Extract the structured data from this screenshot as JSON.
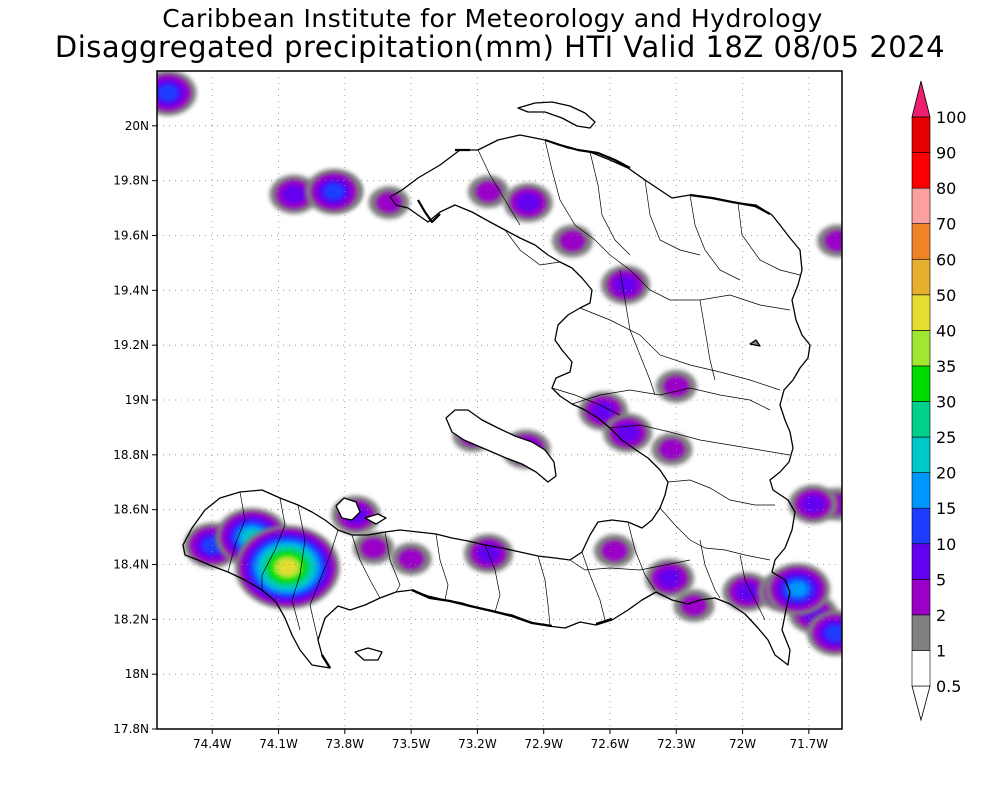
{
  "title": {
    "line1": "Caribbean Institute for Meteorology and Hydrology",
    "line2": "Disaggregated precipitation(mm) HTI Valid 18Z 08/05 2024"
  },
  "map": {
    "lon_range": [
      -74.65,
      -71.55
    ],
    "lat_range": [
      17.8,
      20.2
    ],
    "y_ticks": [
      {
        "value": 20.0,
        "label": "20N"
      },
      {
        "value": 19.8,
        "label": "19.8N"
      },
      {
        "value": 19.6,
        "label": "19.6N"
      },
      {
        "value": 19.4,
        "label": "19.4N"
      },
      {
        "value": 19.2,
        "label": "19.2N"
      },
      {
        "value": 19.0,
        "label": "19N"
      },
      {
        "value": 18.8,
        "label": "18.8N"
      },
      {
        "value": 18.6,
        "label": "18.6N"
      },
      {
        "value": 18.4,
        "label": "18.4N"
      },
      {
        "value": 18.2,
        "label": "18.2N"
      },
      {
        "value": 18.0,
        "label": "18N"
      },
      {
        "value": 17.8,
        "label": "17.8N"
      }
    ],
    "x_ticks": [
      {
        "value": -74.4,
        "label": "74.4W"
      },
      {
        "value": -74.1,
        "label": "74.1W"
      },
      {
        "value": -73.8,
        "label": "73.8W"
      },
      {
        "value": -73.5,
        "label": "73.5W"
      },
      {
        "value": -73.2,
        "label": "73.2W"
      },
      {
        "value": -72.9,
        "label": "72.9W"
      },
      {
        "value": -72.6,
        "label": "72.6W"
      },
      {
        "value": -72.3,
        "label": "72.3W"
      },
      {
        "value": -72.0,
        "label": "72W"
      },
      {
        "value": -71.7,
        "label": "71.7W"
      }
    ],
    "grid": true,
    "precip_cells": [
      {
        "lon": -74.6,
        "lat": 20.12,
        "level": 10
      },
      {
        "lon": -74.03,
        "lat": 19.75,
        "level": 5
      },
      {
        "lon": -73.83,
        "lat": 19.76,
        "level": 5
      },
      {
        "lon": -73.85,
        "lat": 19.76,
        "level": 10
      },
      {
        "lon": -73.6,
        "lat": 19.72,
        "level": 2
      },
      {
        "lon": -73.15,
        "lat": 19.76,
        "level": 2
      },
      {
        "lon": -72.97,
        "lat": 19.72,
        "level": 5
      },
      {
        "lon": -72.77,
        "lat": 19.58,
        "level": 2
      },
      {
        "lon": -72.53,
        "lat": 19.42,
        "level": 5
      },
      {
        "lon": -72.3,
        "lat": 19.05,
        "level": 2
      },
      {
        "lon": -72.63,
        "lat": 18.96,
        "level": 5
      },
      {
        "lon": -72.52,
        "lat": 18.88,
        "level": 5
      },
      {
        "lon": -72.32,
        "lat": 18.82,
        "level": 2
      },
      {
        "lon": -73.22,
        "lat": 18.87,
        "level": 2
      },
      {
        "lon": -72.98,
        "lat": 18.82,
        "level": 5
      },
      {
        "lon": -71.68,
        "lat": 18.62,
        "level": 5
      },
      {
        "lon": -71.57,
        "lat": 18.62,
        "level": 2
      },
      {
        "lon": -71.57,
        "lat": 19.58,
        "level": 2
      },
      {
        "lon": -74.4,
        "lat": 18.47,
        "level": 10
      },
      {
        "lon": -74.22,
        "lat": 18.5,
        "level": 20
      },
      {
        "lon": -74.05,
        "lat": 18.43,
        "level": 10
      },
      {
        "lon": -74.06,
        "lat": 18.39,
        "level": 40
      },
      {
        "lon": -73.95,
        "lat": 18.38,
        "level": 5
      },
      {
        "lon": -73.75,
        "lat": 18.58,
        "level": 5
      },
      {
        "lon": -73.67,
        "lat": 18.46,
        "level": 2
      },
      {
        "lon": -73.5,
        "lat": 18.42,
        "level": 2
      },
      {
        "lon": -73.15,
        "lat": 18.44,
        "level": 5
      },
      {
        "lon": -72.58,
        "lat": 18.45,
        "level": 2
      },
      {
        "lon": -72.33,
        "lat": 18.35,
        "level": 5
      },
      {
        "lon": -72.22,
        "lat": 18.25,
        "level": 2
      },
      {
        "lon": -71.98,
        "lat": 18.3,
        "level": 5
      },
      {
        "lon": -71.82,
        "lat": 18.3,
        "level": 5
      },
      {
        "lon": -71.75,
        "lat": 18.31,
        "level": 15
      },
      {
        "lon": -71.68,
        "lat": 18.22,
        "level": 5
      },
      {
        "lon": -71.58,
        "lat": 18.15,
        "level": 10
      }
    ]
  },
  "colorbar": {
    "levels": [
      {
        "label": "0.5",
        "color": "#ffffff"
      },
      {
        "label": "1",
        "color": "#808080"
      },
      {
        "label": "2",
        "color": "#9a00c8"
      },
      {
        "label": "5",
        "color": "#6400f0"
      },
      {
        "label": "10",
        "color": "#1e3cff"
      },
      {
        "label": "15",
        "color": "#0096ff"
      },
      {
        "label": "20",
        "color": "#00c8c8"
      },
      {
        "label": "25",
        "color": "#00d08c"
      },
      {
        "label": "30",
        "color": "#00dc00"
      },
      {
        "label": "35",
        "color": "#a0e632"
      },
      {
        "label": "40",
        "color": "#e6dc32"
      },
      {
        "label": "50",
        "color": "#e6af2d"
      },
      {
        "label": "60",
        "color": "#f08228"
      },
      {
        "label": "70",
        "color": "#faa0a0"
      },
      {
        "label": "80",
        "color": "#fa0000"
      },
      {
        "label": "90",
        "color": "#e60000"
      },
      {
        "label": "100",
        "color": "#f03c64"
      }
    ],
    "arrow_color": "#ee1f6e"
  },
  "colors": {
    "coast": "#000000",
    "borders": "#000000",
    "grid": "#888888"
  }
}
